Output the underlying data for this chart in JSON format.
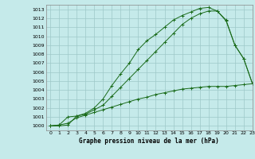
{
  "title": "Graphe pression niveau de la mer (hPa)",
  "bg_color": "#c5eaea",
  "grid_color": "#9ec8c8",
  "line_color": "#1a6b1a",
  "xlim": [
    -0.5,
    23
  ],
  "ylim": [
    999.5,
    1013.5
  ],
  "xticks": [
    0,
    1,
    2,
    3,
    4,
    5,
    6,
    7,
    8,
    9,
    10,
    11,
    12,
    13,
    14,
    15,
    16,
    17,
    18,
    19,
    20,
    21,
    22,
    23
  ],
  "yticks": [
    1000,
    1001,
    1002,
    1003,
    1004,
    1005,
    1006,
    1007,
    1008,
    1009,
    1010,
    1011,
    1012,
    1013
  ],
  "series1_x": [
    0,
    1,
    2,
    3,
    4,
    5,
    6,
    7,
    8,
    9,
    10,
    11,
    12,
    13,
    14,
    15,
    16,
    17,
    18,
    19,
    20,
    21,
    22,
    23
  ],
  "series1_y": [
    1000.0,
    1000.1,
    1001.0,
    1001.1,
    1001.4,
    1002.0,
    1003.0,
    1004.5,
    1005.8,
    1007.0,
    1008.5,
    1009.5,
    1010.2,
    1011.0,
    1011.8,
    1012.3,
    1012.7,
    1013.1,
    1013.2,
    1012.8,
    1011.7,
    1009.0,
    1007.5,
    1004.7
  ],
  "series2_x": [
    0,
    1,
    2,
    3,
    4,
    5,
    6,
    7,
    8,
    9,
    10,
    11,
    12,
    13,
    14,
    15,
    16,
    17,
    18,
    19,
    20,
    21,
    22,
    23
  ],
  "series2_y": [
    1000.0,
    1000.0,
    1000.1,
    1001.1,
    1001.3,
    1001.8,
    1002.3,
    1003.3,
    1004.3,
    1005.3,
    1006.3,
    1007.3,
    1008.3,
    1009.3,
    1010.3,
    1011.3,
    1012.0,
    1012.5,
    1012.8,
    1012.8,
    1011.8,
    1009.0,
    1007.5,
    1004.7
  ],
  "series3_x": [
    0,
    1,
    2,
    3,
    4,
    5,
    6,
    7,
    8,
    9,
    10,
    11,
    12,
    13,
    14,
    15,
    16,
    17,
    18,
    19,
    20,
    21,
    22,
    23
  ],
  "series3_y": [
    1000.0,
    1000.1,
    1000.3,
    1000.9,
    1001.2,
    1001.5,
    1001.8,
    1002.1,
    1002.4,
    1002.7,
    1003.0,
    1003.2,
    1003.5,
    1003.7,
    1003.9,
    1004.1,
    1004.2,
    1004.3,
    1004.4,
    1004.4,
    1004.4,
    1004.5,
    1004.6,
    1004.7
  ]
}
